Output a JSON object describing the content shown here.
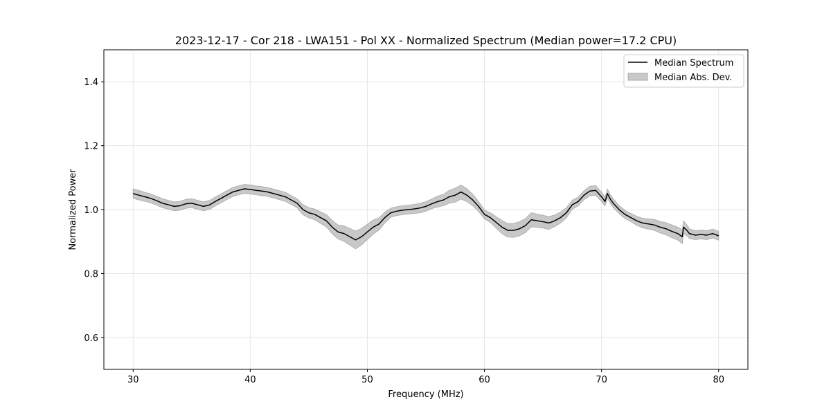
{
  "chart_data": {
    "type": "line",
    "title": "2023-12-17 - Cor 218 - LWA151 - Pol XX - Normalized Spectrum (Median power=17.2 CPU)",
    "xlabel": "Frequency (MHz)",
    "ylabel": "Normalized Power",
    "xlim": [
      27.5,
      82.5
    ],
    "ylim": [
      0.5,
      1.5
    ],
    "xticks": [
      30,
      40,
      50,
      60,
      70,
      80
    ],
    "yticks": [
      0.6,
      0.8,
      1.0,
      1.2,
      1.4
    ],
    "grid": true,
    "legend_position": "top-right",
    "colors": {
      "line": "#000000",
      "band": "#c8c8c8",
      "band_edge": "#a8a8a8",
      "grid": "#e6e6e6"
    },
    "series": [
      {
        "name": "Median Spectrum",
        "kind": "line",
        "x": [
          30,
          30.5,
          31,
          31.5,
          32,
          32.5,
          33,
          33.5,
          34,
          34.5,
          35,
          35.5,
          36,
          36.5,
          37,
          37.5,
          38,
          38.5,
          39,
          39.5,
          40,
          40.5,
          41,
          41.5,
          42,
          42.5,
          43,
          43.5,
          44,
          44.5,
          45,
          45.5,
          46,
          46.5,
          47,
          47.5,
          48,
          48.5,
          49,
          49.5,
          50,
          50.5,
          51,
          51.5,
          52,
          52.5,
          53,
          53.5,
          54,
          54.5,
          55,
          55.5,
          56,
          56.5,
          57,
          57.5,
          58,
          58.5,
          59,
          59.5,
          60,
          60.5,
          61,
          61.5,
          62,
          62.5,
          63,
          63.5,
          64,
          64.5,
          65,
          65.5,
          66,
          66.5,
          67,
          67.5,
          68,
          68.5,
          69,
          69.5,
          70,
          70.3,
          70.5,
          70.8,
          71,
          71.5,
          72,
          72.5,
          73,
          73.5,
          74,
          74.5,
          75,
          75.5,
          76,
          76.5,
          76.9,
          77,
          77.3,
          77.5,
          78,
          78.5,
          79,
          79.5,
          80
        ],
        "y": [
          1.05,
          1.045,
          1.04,
          1.035,
          1.028,
          1.02,
          1.015,
          1.01,
          1.012,
          1.018,
          1.02,
          1.015,
          1.01,
          1.014,
          1.025,
          1.035,
          1.045,
          1.055,
          1.06,
          1.065,
          1.063,
          1.06,
          1.058,
          1.055,
          1.05,
          1.045,
          1.04,
          1.03,
          1.02,
          1.0,
          0.99,
          0.985,
          0.975,
          0.965,
          0.945,
          0.93,
          0.925,
          0.915,
          0.905,
          0.915,
          0.93,
          0.945,
          0.955,
          0.975,
          0.99,
          0.995,
          0.998,
          1.0,
          1.002,
          1.005,
          1.01,
          1.018,
          1.025,
          1.03,
          1.04,
          1.045,
          1.055,
          1.045,
          1.03,
          1.01,
          0.985,
          0.975,
          0.96,
          0.945,
          0.935,
          0.935,
          0.94,
          0.95,
          0.968,
          0.965,
          0.962,
          0.958,
          0.965,
          0.975,
          0.99,
          1.015,
          1.025,
          1.045,
          1.058,
          1.06,
          1.04,
          1.025,
          1.05,
          1.03,
          1.02,
          1.0,
          0.985,
          0.975,
          0.965,
          0.958,
          0.955,
          0.952,
          0.945,
          0.94,
          0.932,
          0.925,
          0.915,
          0.945,
          0.935,
          0.925,
          0.92,
          0.922,
          0.92,
          0.925,
          0.918
        ]
      },
      {
        "name": "Median Abs. Dev.",
        "kind": "band",
        "x": [
          30,
          30.5,
          31,
          31.5,
          32,
          32.5,
          33,
          33.5,
          34,
          34.5,
          35,
          35.5,
          36,
          36.5,
          37,
          37.5,
          38,
          38.5,
          39,
          39.5,
          40,
          40.5,
          41,
          41.5,
          42,
          42.5,
          43,
          43.5,
          44,
          44.5,
          45,
          45.5,
          46,
          46.5,
          47,
          47.5,
          48,
          48.5,
          49,
          49.5,
          50,
          50.5,
          51,
          51.5,
          52,
          52.5,
          53,
          53.5,
          54,
          54.5,
          55,
          55.5,
          56,
          56.5,
          57,
          57.5,
          58,
          58.5,
          59,
          59.5,
          60,
          60.5,
          61,
          61.5,
          62,
          62.5,
          63,
          63.5,
          64,
          64.5,
          65,
          65.5,
          66,
          66.5,
          67,
          67.5,
          68,
          68.5,
          69,
          69.5,
          70,
          70.3,
          70.5,
          70.8,
          71,
          71.5,
          72,
          72.5,
          73,
          73.5,
          74,
          74.5,
          75,
          75.5,
          76,
          76.5,
          76.9,
          77,
          77.3,
          77.5,
          78,
          78.5,
          79,
          79.5,
          80
        ],
        "lower": [
          1.035,
          1.03,
          1.026,
          1.021,
          1.014,
          1.006,
          1.001,
          0.996,
          0.998,
          1.004,
          1.006,
          1.001,
          0.996,
          1.0,
          1.011,
          1.021,
          1.031,
          1.041,
          1.046,
          1.051,
          1.049,
          1.046,
          1.044,
          1.041,
          1.036,
          1.031,
          1.026,
          1.016,
          1.006,
          0.984,
          0.974,
          0.968,
          0.957,
          0.946,
          0.924,
          0.908,
          0.901,
          0.889,
          0.877,
          0.889,
          0.906,
          0.923,
          0.936,
          0.958,
          0.976,
          0.981,
          0.984,
          0.986,
          0.988,
          0.99,
          0.995,
          1.003,
          1.008,
          1.012,
          1.02,
          1.023,
          1.033,
          1.025,
          1.012,
          0.994,
          0.971,
          0.96,
          0.942,
          0.924,
          0.914,
          0.913,
          0.918,
          0.928,
          0.946,
          0.944,
          0.942,
          0.938,
          0.947,
          0.958,
          0.974,
          1.001,
          1.011,
          1.031,
          1.043,
          1.045,
          1.025,
          1.011,
          1.036,
          1.016,
          1.006,
          0.987,
          0.972,
          0.962,
          0.951,
          0.943,
          0.939,
          0.935,
          0.927,
          0.921,
          0.912,
          0.905,
          0.893,
          0.925,
          0.918,
          0.91,
          0.906,
          0.908,
          0.906,
          0.911,
          0.904
        ],
        "upper": [
          1.065,
          1.06,
          1.054,
          1.049,
          1.042,
          1.034,
          1.029,
          1.024,
          1.026,
          1.032,
          1.034,
          1.029,
          1.024,
          1.028,
          1.039,
          1.049,
          1.059,
          1.069,
          1.074,
          1.079,
          1.077,
          1.074,
          1.072,
          1.069,
          1.064,
          1.059,
          1.054,
          1.044,
          1.034,
          1.016,
          1.006,
          1.002,
          0.993,
          0.984,
          0.966,
          0.952,
          0.949,
          0.941,
          0.933,
          0.941,
          0.954,
          0.967,
          0.974,
          0.992,
          1.004,
          1.009,
          1.012,
          1.014,
          1.016,
          1.02,
          1.025,
          1.033,
          1.042,
          1.048,
          1.06,
          1.067,
          1.077,
          1.065,
          1.048,
          1.026,
          0.999,
          0.99,
          0.978,
          0.966,
          0.956,
          0.957,
          0.962,
          0.972,
          0.99,
          0.986,
          0.982,
          0.978,
          0.983,
          0.992,
          1.006,
          1.029,
          1.039,
          1.059,
          1.073,
          1.075,
          1.055,
          1.039,
          1.064,
          1.044,
          1.034,
          1.013,
          0.998,
          0.988,
          0.979,
          0.973,
          0.971,
          0.969,
          0.963,
          0.959,
          0.952,
          0.945,
          0.937,
          0.965,
          0.952,
          0.94,
          0.934,
          0.936,
          0.934,
          0.939,
          0.932
        ]
      }
    ]
  }
}
